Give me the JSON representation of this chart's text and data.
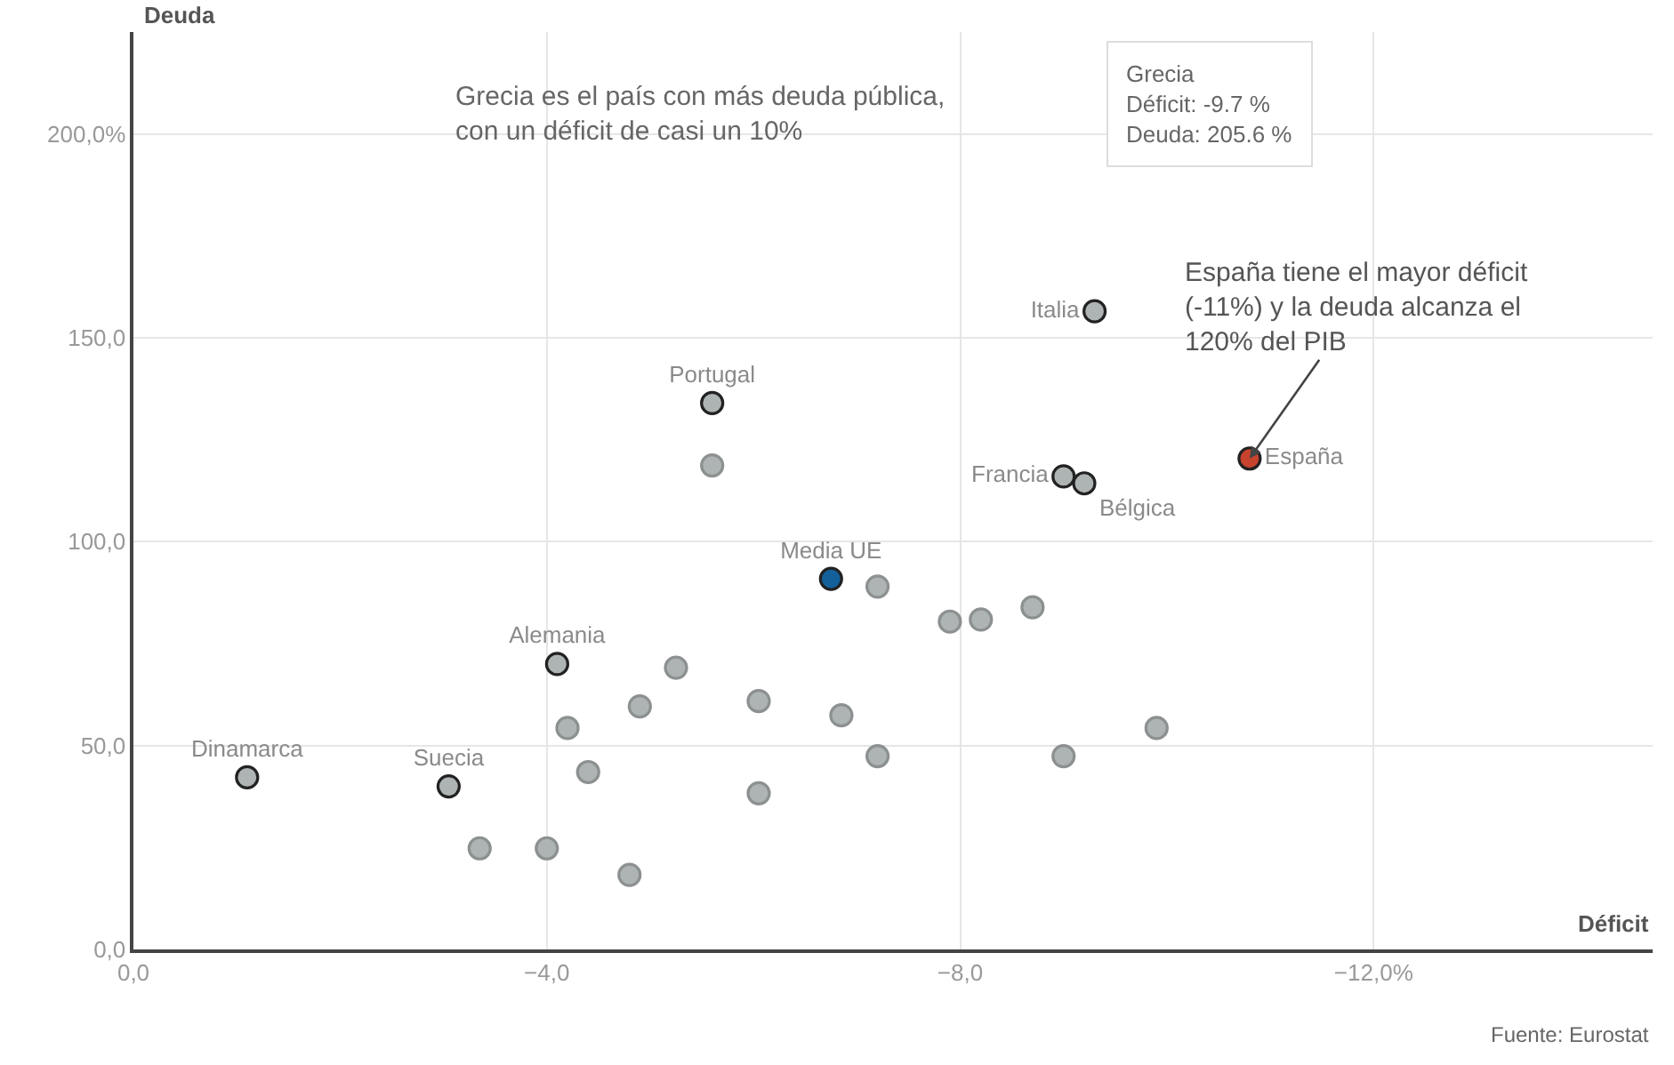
{
  "chart_data": {
    "type": "scatter",
    "xlabel": "Déficit",
    "ylabel": "Deuda",
    "x": [
      -1.1,
      -3.05,
      -4.1,
      -5.6,
      -5.6,
      -6.75,
      -9.3,
      -9.0,
      -9.2,
      -10.8,
      -7.2,
      -7.9,
      -8.2,
      -8.7,
      -9.9,
      -9.0,
      -7.2,
      -6.85,
      -6.05,
      -6.05,
      -5.25,
      -4.9,
      -4.2,
      -4.4,
      -4.8,
      -4.0,
      -3.35
    ],
    "series": [
      {
        "values": [
          42.2,
          40,
          70,
          134,
          118.7,
          90.9,
          156.5,
          116,
          114.3,
          120.4,
          89,
          80.4,
          80.9,
          83.9,
          54.3,
          47.4,
          47.4,
          57.4,
          60.9,
          38.3,
          69.1,
          59.6,
          54.3,
          43.5,
          18.3,
          24.8,
          24.8
        ],
        "colors": [
          "#aeb3b3",
          "#aeb3b3",
          "#aeb3b3",
          "#aeb3b3",
          "#aeb3b3",
          "#13609a",
          "#aeb3b3",
          "#aeb3b3",
          "#aeb3b3",
          "#c8432e",
          "#aeb3b3",
          "#aeb3b3",
          "#aeb3b3",
          "#aeb3b3",
          "#aeb3b3",
          "#aeb3b3",
          "#aeb3b3",
          "#aeb3b3",
          "#aeb3b3",
          "#aeb3b3",
          "#aeb3b3",
          "#aeb3b3",
          "#aeb3b3",
          "#aeb3b3",
          "#aeb3b3",
          "#aeb3b3",
          "#aeb3b3"
        ],
        "value_labels": [
          "Dinamarca",
          "Suecia",
          "Alemania",
          "Portugal",
          null,
          "Media UE",
          "Italia",
          "Francia",
          "Bélgica",
          "España",
          null,
          null,
          null,
          null,
          null,
          null,
          null,
          null,
          null,
          null,
          null,
          null,
          null,
          null,
          null,
          null,
          null
        ]
      }
    ],
    "xlim": [
      0,
      -14.7
    ],
    "ylim": [
      0,
      225
    ],
    "xticks": [
      {
        "value": 0,
        "label": "0,0"
      },
      {
        "value": -4,
        "label": "−4,0"
      },
      {
        "value": -8,
        "label": "−8,0"
      },
      {
        "value": -12,
        "label": "−12,0%"
      }
    ],
    "yticks": [
      {
        "value": 0,
        "label": "0,0"
      },
      {
        "value": 50,
        "label": "50,0"
      },
      {
        "value": 100,
        "label": "100,0"
      },
      {
        "value": 150,
        "label": "150,0"
      },
      {
        "value": 200,
        "label": "200,0%"
      }
    ],
    "grid": true,
    "annotations": [
      "Grecia es el país con más deuda pública,\ncon un déficit de casi un 10%",
      "Grecia\nDéficit: -9.7 %\nDeuda: 205.6 %",
      {
        "text": "España tiene el mayor déficit\n(-11%) y la deuda alcanza el\n120% del PIB",
        "x": -10.8,
        "y": 120.4
      },
      "Fuente: Eurostat"
    ]
  }
}
